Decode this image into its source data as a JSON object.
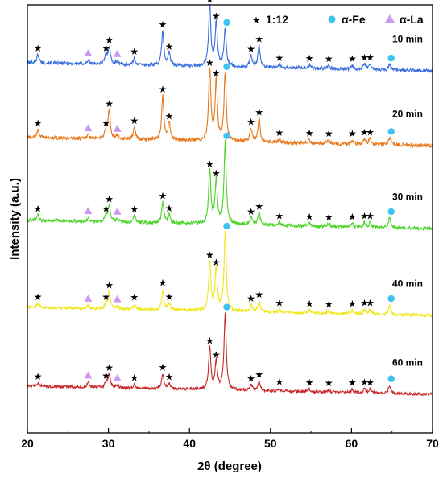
{
  "chart_data": {
    "type": "line",
    "xlabel": "2θ (degree)",
    "ylabel": "Intensity (a.u.)",
    "xlim": [
      20,
      70
    ],
    "xticks": [
      20,
      30,
      40,
      50,
      60,
      70
    ],
    "legend": {
      "placement": "top-right",
      "items": [
        {
          "symbol": "★",
          "label": "1:12",
          "color": "#000000"
        },
        {
          "symbol": "●",
          "label": "α-Fe",
          "color": "#3ec3f0"
        },
        {
          "symbol": "▲",
          "label": "α-La",
          "color": "#cc99ee"
        }
      ]
    },
    "peaks_1_12": [
      21.3,
      29.7,
      30.1,
      33.2,
      36.7,
      37.5,
      42.5,
      43.3,
      47.6,
      48.6,
      51.1,
      54.8,
      57.2,
      60.1,
      61.6,
      62.3
    ],
    "peaks_alpha_fe": [
      44.4,
      64.7
    ],
    "peaks_alpha_la": [
      27.5,
      31.1
    ],
    "series": [
      {
        "name": "10 min",
        "color": "#3a6fe0",
        "offset": 4,
        "noise": 0.05,
        "peaks": [
          {
            "x": 21.3,
            "h": 0.12
          },
          {
            "x": 27.5,
            "h": 0.05
          },
          {
            "x": 29.7,
            "h": 0.14
          },
          {
            "x": 30.1,
            "h": 0.26
          },
          {
            "x": 31.1,
            "h": 0.05
          },
          {
            "x": 33.2,
            "h": 0.1
          },
          {
            "x": 36.7,
            "h": 0.5
          },
          {
            "x": 37.5,
            "h": 0.18
          },
          {
            "x": 42.5,
            "h": 0.88
          },
          {
            "x": 43.3,
            "h": 0.64
          },
          {
            "x": 44.4,
            "h": 0.55
          },
          {
            "x": 47.6,
            "h": 0.17
          },
          {
            "x": 48.6,
            "h": 0.32
          },
          {
            "x": 51.1,
            "h": 0.05
          },
          {
            "x": 54.8,
            "h": 0.05
          },
          {
            "x": 57.2,
            "h": 0.05
          },
          {
            "x": 60.1,
            "h": 0.06
          },
          {
            "x": 61.6,
            "h": 0.08
          },
          {
            "x": 62.3,
            "h": 0.08
          },
          {
            "x": 64.7,
            "h": 0.08
          }
        ]
      },
      {
        "name": "20 min",
        "color": "#e8781a",
        "offset": 3,
        "noise": 0.05,
        "peaks": [
          {
            "x": 21.3,
            "h": 0.12
          },
          {
            "x": 27.5,
            "h": 0.05
          },
          {
            "x": 29.7,
            "h": 0.14
          },
          {
            "x": 30.1,
            "h": 0.42
          },
          {
            "x": 31.1,
            "h": 0.05
          },
          {
            "x": 33.2,
            "h": 0.18
          },
          {
            "x": 36.7,
            "h": 0.65
          },
          {
            "x": 37.5,
            "h": 0.26
          },
          {
            "x": 42.5,
            "h": 1.05
          },
          {
            "x": 43.3,
            "h": 0.9
          },
          {
            "x": 44.4,
            "h": 1.0
          },
          {
            "x": 47.6,
            "h": 0.2
          },
          {
            "x": 48.6,
            "h": 0.34
          },
          {
            "x": 51.1,
            "h": 0.05
          },
          {
            "x": 54.8,
            "h": 0.05
          },
          {
            "x": 57.2,
            "h": 0.05
          },
          {
            "x": 60.1,
            "h": 0.06
          },
          {
            "x": 61.6,
            "h": 0.08
          },
          {
            "x": 62.3,
            "h": 0.08
          },
          {
            "x": 64.7,
            "h": 0.1
          }
        ]
      },
      {
        "name": "30 min",
        "color": "#4cd42a",
        "offset": 2,
        "noise": 0.05,
        "peaks": [
          {
            "x": 21.3,
            "h": 0.08
          },
          {
            "x": 27.5,
            "h": 0.05
          },
          {
            "x": 29.7,
            "h": 0.1
          },
          {
            "x": 30.1,
            "h": 0.24
          },
          {
            "x": 31.1,
            "h": 0.05
          },
          {
            "x": 33.2,
            "h": 0.1
          },
          {
            "x": 36.7,
            "h": 0.3
          },
          {
            "x": 37.5,
            "h": 0.12
          },
          {
            "x": 42.5,
            "h": 0.78
          },
          {
            "x": 43.3,
            "h": 0.65
          },
          {
            "x": 44.4,
            "h": 1.2
          },
          {
            "x": 47.6,
            "h": 0.1
          },
          {
            "x": 48.6,
            "h": 0.18
          },
          {
            "x": 51.1,
            "h": 0.04
          },
          {
            "x": 54.8,
            "h": 0.04
          },
          {
            "x": 57.2,
            "h": 0.04
          },
          {
            "x": 60.1,
            "h": 0.05
          },
          {
            "x": 61.6,
            "h": 0.07
          },
          {
            "x": 62.3,
            "h": 0.07
          },
          {
            "x": 64.7,
            "h": 0.14
          }
        ]
      },
      {
        "name": "40 min",
        "color": "#f0e81a",
        "offset": 1,
        "noise": 0.04,
        "peaks": [
          {
            "x": 21.3,
            "h": 0.06
          },
          {
            "x": 27.5,
            "h": 0.04
          },
          {
            "x": 29.7,
            "h": 0.08
          },
          {
            "x": 30.1,
            "h": 0.25
          },
          {
            "x": 31.1,
            "h": 0.04
          },
          {
            "x": 33.2,
            "h": 0.08
          },
          {
            "x": 36.7,
            "h": 0.3
          },
          {
            "x": 37.5,
            "h": 0.1
          },
          {
            "x": 42.5,
            "h": 0.72
          },
          {
            "x": 43.3,
            "h": 0.62
          },
          {
            "x": 44.4,
            "h": 1.15
          },
          {
            "x": 47.6,
            "h": 0.1
          },
          {
            "x": 48.6,
            "h": 0.16
          },
          {
            "x": 51.1,
            "h": 0.04
          },
          {
            "x": 54.8,
            "h": 0.04
          },
          {
            "x": 57.2,
            "h": 0.04
          },
          {
            "x": 60.1,
            "h": 0.05
          },
          {
            "x": 61.6,
            "h": 0.07
          },
          {
            "x": 62.3,
            "h": 0.07
          },
          {
            "x": 64.7,
            "h": 0.14
          }
        ]
      },
      {
        "name": "60 min",
        "color": "#c8282a",
        "offset": 0,
        "noise": 0.04,
        "peaks": [
          {
            "x": 21.3,
            "h": 0.05
          },
          {
            "x": 27.5,
            "h": 0.07
          },
          {
            "x": 29.7,
            "h": 0.08
          },
          {
            "x": 30.1,
            "h": 0.2
          },
          {
            "x": 31.1,
            "h": 0.04
          },
          {
            "x": 33.2,
            "h": 0.06
          },
          {
            "x": 36.7,
            "h": 0.22
          },
          {
            "x": 37.5,
            "h": 0.08
          },
          {
            "x": 42.5,
            "h": 0.62
          },
          {
            "x": 43.3,
            "h": 0.42
          },
          {
            "x": 44.4,
            "h": 1.12
          },
          {
            "x": 47.6,
            "h": 0.08
          },
          {
            "x": 48.6,
            "h": 0.14
          },
          {
            "x": 51.1,
            "h": 0.04
          },
          {
            "x": 54.8,
            "h": 0.04
          },
          {
            "x": 57.2,
            "h": 0.04
          },
          {
            "x": 60.1,
            "h": 0.05
          },
          {
            "x": 61.6,
            "h": 0.06
          },
          {
            "x": 62.3,
            "h": 0.06
          },
          {
            "x": 64.7,
            "h": 0.12
          }
        ]
      }
    ]
  }
}
